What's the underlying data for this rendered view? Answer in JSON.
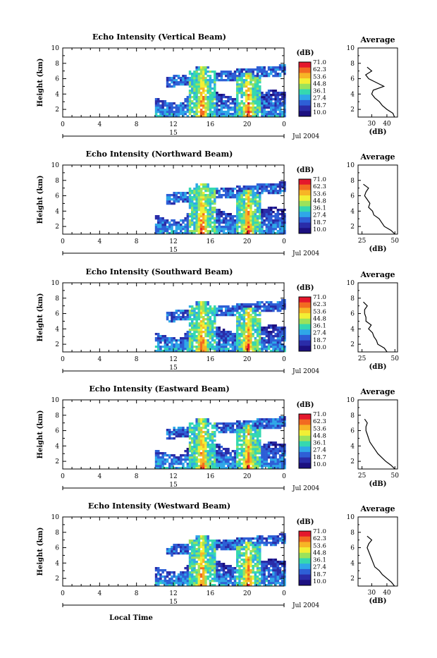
{
  "xlabel": "Local Time",
  "date_label": "Jul 2004",
  "colorbar": {
    "unit": "(dB)",
    "labels": [
      "71.0",
      "62.3",
      "53.6",
      "44.8",
      "36.1",
      "27.4",
      "18.7",
      "10.0"
    ],
    "colors": [
      "#e4172c",
      "#f26a21",
      "#f7b526",
      "#f2ef35",
      "#9be25b",
      "#35d8b0",
      "#2fa8e8",
      "#2e5fd6",
      "#2a2ca8",
      "#1c1080"
    ]
  },
  "chart_data": [
    {
      "type": "heatmap",
      "title": "Echo Intensity (Vertical Beam)",
      "ylabel": "Height (km)",
      "xlabel": "",
      "x_ticks": [
        "0",
        "4",
        "8",
        "12",
        "16",
        "20",
        "0"
      ],
      "y_ticks": [
        "2",
        "4",
        "6",
        "8",
        "10"
      ],
      "xlim": [
        0,
        24
      ],
      "ylim": [
        1,
        10
      ],
      "day_label": "15",
      "data_start_hour": 10,
      "profile": {
        "title": "Average",
        "xlabel": "(dB)",
        "x_ticks": [
          "30",
          "40"
        ],
        "xlim": [
          21,
          47
        ],
        "heights": [
          1,
          1.5,
          2,
          2.5,
          3,
          3.5,
          4,
          4.5,
          5,
          5.5,
          6,
          6.5,
          7,
          7.5
        ],
        "values": [
          45,
          44,
          40,
          37,
          35,
          32,
          30,
          31,
          38,
          33,
          28,
          26,
          30,
          27
        ]
      }
    },
    {
      "type": "heatmap",
      "title": "Echo Intensity (Northward Beam)",
      "ylabel": "Height (km)",
      "xlabel": "",
      "x_ticks": [
        "0",
        "4",
        "8",
        "12",
        "16",
        "20",
        "0"
      ],
      "y_ticks": [
        "2",
        "4",
        "6",
        "8",
        "10"
      ],
      "xlim": [
        0,
        24
      ],
      "ylim": [
        1,
        10
      ],
      "day_label": "15",
      "data_start_hour": 10,
      "profile": {
        "title": "Average",
        "xlabel": "(dB)",
        "x_ticks": [
          "25",
          "50"
        ],
        "xlim": [
          22,
          52
        ],
        "heights": [
          1,
          1.5,
          2,
          2.5,
          3,
          3.5,
          4,
          4.5,
          5,
          5.5,
          6,
          6.5,
          7,
          7.5
        ],
        "values": [
          50,
          47,
          42,
          40,
          38,
          34,
          33,
          30,
          31,
          29,
          27,
          28,
          30,
          26
        ]
      }
    },
    {
      "type": "heatmap",
      "title": "Echo Intensity (Southward Beam)",
      "ylabel": "Height (km)",
      "xlabel": "",
      "x_ticks": [
        "0",
        "4",
        "8",
        "12",
        "16",
        "20",
        "0"
      ],
      "y_ticks": [
        "2",
        "4",
        "6",
        "8",
        "10"
      ],
      "xlim": [
        0,
        24
      ],
      "ylim": [
        1,
        10
      ],
      "day_label": "15",
      "data_start_hour": 10,
      "profile": {
        "title": "Average",
        "xlabel": "(dB)",
        "x_ticks": [
          "25",
          "50"
        ],
        "xlim": [
          22,
          52
        ],
        "heights": [
          1,
          1.5,
          2,
          2.5,
          3,
          3.5,
          4,
          4.5,
          5,
          5.5,
          6,
          6.5,
          7,
          7.5
        ],
        "values": [
          44,
          42,
          37,
          36,
          34,
          33,
          30,
          32,
          28,
          28,
          27,
          27,
          29,
          26
        ]
      }
    },
    {
      "type": "heatmap",
      "title": "Echo Intensity (Eastward Beam)",
      "ylabel": "Height (km)",
      "xlabel": "",
      "x_ticks": [
        "0",
        "4",
        "8",
        "12",
        "16",
        "20",
        "0"
      ],
      "y_ticks": [
        "2",
        "4",
        "6",
        "8",
        "10"
      ],
      "xlim": [
        0,
        24
      ],
      "ylim": [
        1,
        10
      ],
      "day_label": "15",
      "data_start_hour": 10,
      "profile": {
        "title": "Average",
        "xlabel": "(dB)",
        "x_ticks": [
          "25",
          "50"
        ],
        "xlim": [
          22,
          52
        ],
        "heights": [
          1,
          1.5,
          2,
          2.5,
          3,
          3.5,
          4,
          4.5,
          5,
          5.5,
          6,
          6.5,
          7,
          7.5
        ],
        "values": [
          50,
          47,
          43,
          40,
          37,
          35,
          33,
          31,
          30,
          29,
          28,
          28,
          29,
          27
        ]
      }
    },
    {
      "type": "heatmap",
      "title": "Echo Intensity (Westward Beam)",
      "ylabel": "Height (km)",
      "xlabel": "Local Time",
      "x_ticks": [
        "0",
        "4",
        "8",
        "12",
        "16",
        "20",
        "0"
      ],
      "y_ticks": [
        "2",
        "4",
        "6",
        "8",
        "10"
      ],
      "xlim": [
        0,
        24
      ],
      "ylim": [
        1,
        10
      ],
      "day_label": "15",
      "data_start_hour": 10,
      "profile": {
        "title": "Average",
        "xlabel": "(dB)",
        "x_ticks": [
          "30",
          "40"
        ],
        "xlim": [
          21,
          47
        ],
        "heights": [
          1,
          1.5,
          2,
          2.5,
          3,
          3.5,
          4,
          4.5,
          5,
          5.5,
          6,
          6.5,
          7,
          7.5
        ],
        "values": [
          45,
          43,
          40,
          37,
          35,
          32,
          31,
          30,
          29,
          28,
          27,
          28,
          30,
          27
        ]
      }
    }
  ]
}
